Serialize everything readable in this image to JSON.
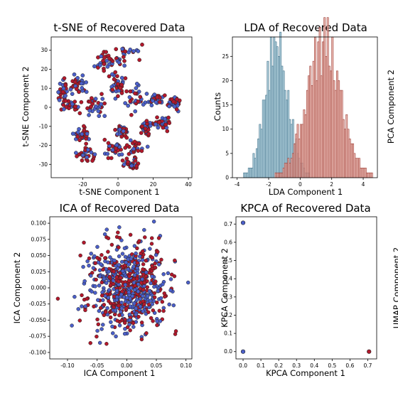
{
  "colors": {
    "red": "#b2182b",
    "blue": "#4b5fc9",
    "marker_edge": "#222222",
    "hist_blue": "#a8cbd8",
    "hist_blue_edge": "#3f6f88",
    "hist_red": "#e3a39a",
    "hist_red_edge": "#9c3b33"
  },
  "chart_data": [
    {
      "id": "tsne",
      "type": "scatter",
      "title": "t-SNE of Recovered Data",
      "xlabel": "t-SNE Component 1",
      "ylabel": "t-SNE Component 2",
      "xlim": [
        -38,
        42
      ],
      "ylim": [
        -37,
        37
      ],
      "xticks": [
        -20,
        0,
        20,
        40
      ],
      "yticks": [
        -30,
        -20,
        -10,
        0,
        10,
        20,
        30
      ],
      "clusters": [
        {
          "x": 4,
          "y": 27,
          "sx": 7,
          "sy": 5
        },
        {
          "x": -8,
          "y": 24,
          "sx": 6,
          "sy": 6
        },
        {
          "x": -22,
          "y": 12,
          "sx": 5,
          "sy": 4
        },
        {
          "x": -31,
          "y": 9,
          "sx": 3,
          "sy": 5
        },
        {
          "x": -27,
          "y": 1,
          "sx": 4,
          "sy": 2
        },
        {
          "x": -12,
          "y": 1,
          "sx": 6,
          "sy": 4
        },
        {
          "x": 0,
          "y": 10,
          "sx": 3,
          "sy": 5
        },
        {
          "x": 10,
          "y": 5,
          "sx": 6,
          "sy": 5
        },
        {
          "x": 22,
          "y": 4,
          "sx": 5,
          "sy": 3
        },
        {
          "x": 32,
          "y": 2,
          "sx": 3,
          "sy": 3
        },
        {
          "x": 25,
          "y": -8,
          "sx": 6,
          "sy": 3
        },
        {
          "x": 16,
          "y": -11,
          "sx": 3,
          "sy": 3
        },
        {
          "x": -20,
          "y": -14,
          "sx": 4,
          "sy": 3
        },
        {
          "x": -18,
          "y": -24,
          "sx": 5,
          "sy": 3
        },
        {
          "x": -3,
          "y": -22,
          "sx": 5,
          "sy": 4
        },
        {
          "x": 9,
          "y": -22,
          "sx": 4,
          "sy": 4
        },
        {
          "x": 8,
          "y": -30,
          "sx": 4,
          "sy": 2
        },
        {
          "x": 2,
          "y": -13,
          "sx": 3,
          "sy": 3
        }
      ],
      "series": [
        {
          "color": "blue"
        },
        {
          "color": "red"
        }
      ]
    },
    {
      "id": "lda",
      "type": "bar",
      "subtype": "overlapping-histogram",
      "title": "LDA of Recovered Data",
      "xlabel": "LDA Component 1",
      "ylabel": "Counts",
      "xlim": [
        -4.3,
        4.9
      ],
      "ylim": [
        0,
        29
      ],
      "xticks": [
        -4,
        -2,
        0,
        2,
        4
      ],
      "yticks": [
        0,
        5,
        10,
        15,
        20,
        25
      ],
      "series": [
        {
          "color": "hist_blue",
          "edge": "hist_blue_edge",
          "mean": -1.5,
          "sd": 0.75,
          "peak": 27,
          "range": [
            -3.9,
            0.8
          ]
        },
        {
          "color": "hist_red",
          "edge": "hist_red_edge",
          "mean": 1.5,
          "sd": 1.1,
          "peak": 28,
          "range": [
            -2.2,
            4.7
          ]
        }
      ],
      "bin_width": 0.1
    },
    {
      "id": "ica",
      "type": "scatter",
      "title": "ICA of Recovered Data",
      "xlabel": "ICA Component 1",
      "ylabel": "ICA Component 2",
      "xlim": [
        -0.13,
        0.11
      ],
      "ylim": [
        -0.11,
        0.11
      ],
      "xticks": [
        -0.1,
        -0.05,
        0.0,
        0.05,
        0.1
      ],
      "yticks": [
        -0.1,
        -0.075,
        -0.05,
        -0.025,
        0.0,
        0.025,
        0.05,
        0.075,
        0.1
      ],
      "center": [
        0,
        0
      ],
      "spread": [
        0.032,
        0.034
      ],
      "series": [
        {
          "color": "blue"
        },
        {
          "color": "red"
        }
      ]
    },
    {
      "id": "kpca",
      "type": "scatter",
      "title": "KPCA of Recovered Data",
      "xlabel": "KPCA Component 1",
      "ylabel": "KPCA Component 2",
      "xlim": [
        -0.04,
        0.75
      ],
      "ylim": [
        -0.04,
        0.74
      ],
      "xticks": [
        0.0,
        0.1,
        0.2,
        0.3,
        0.4,
        0.5,
        0.6,
        0.7
      ],
      "yticks": [
        0.0,
        0.1,
        0.2,
        0.3,
        0.4,
        0.5,
        0.6,
        0.7
      ],
      "points": [
        {
          "x": 0.0,
          "y": 0.707,
          "color": "blue"
        },
        {
          "x": 0.0,
          "y": 0.0,
          "color": "blue"
        },
        {
          "x": 0.707,
          "y": 0.0,
          "color": "red"
        }
      ]
    }
  ],
  "cut_off_labels": {
    "pca": "PCA Component 2",
    "umap": "UMAP Component 2"
  }
}
